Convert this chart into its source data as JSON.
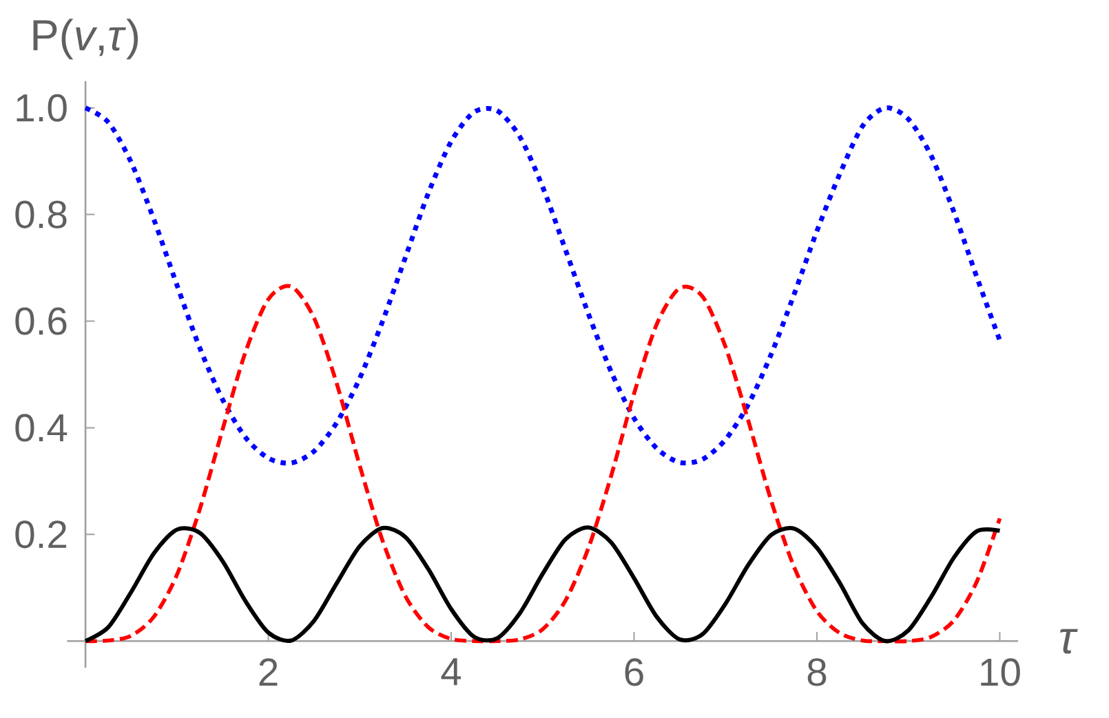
{
  "chart_data": {
    "type": "line",
    "ylabel": "P(*v*,*τ*)",
    "xlabel": "τ",
    "x": [
      0,
      0.25,
      0.5,
      0.75,
      1,
      1.25,
      1.5,
      1.75,
      2,
      2.25,
      2.5,
      2.75,
      3,
      3.25,
      3.5,
      3.75,
      4,
      4.25,
      4.5,
      4.75,
      5,
      5.25,
      5.5,
      5.75,
      6,
      6.25,
      6.5,
      6.75,
      7,
      7.25,
      7.5,
      7.75,
      8,
      8.25,
      8.5,
      8.75,
      9,
      9.25,
      9.5,
      9.75,
      10
    ],
    "series": [
      {
        "color": "#0000ff",
        "line_style": "dotted",
        "values": [
          1,
          0.973,
          0.898,
          0.79,
          0.668,
          0.55,
          0.453,
          0.382,
          0.343,
          0.334,
          0.356,
          0.41,
          0.493,
          0.6,
          0.72,
          0.84,
          0.937,
          0.992,
          0.995,
          0.946,
          0.852,
          0.734,
          0.614,
          0.505,
          0.418,
          0.361,
          0.335,
          0.341,
          0.378,
          0.444,
          0.538,
          0.65,
          0.769,
          0.876,
          0.966,
          1,
          0.979,
          0.91,
          0.804,
          0.682,
          0.564
        ]
      },
      {
        "color": "#ff0000",
        "line_style": "dashed",
        "values": [
          0,
          0.001,
          0.01,
          0.046,
          0.124,
          0.247,
          0.397,
          0.542,
          0.641,
          0.665,
          0.606,
          0.482,
          0.329,
          0.188,
          0.084,
          0.026,
          0.004,
          0,
          0,
          0.003,
          0.022,
          0.076,
          0.174,
          0.31,
          0.464,
          0.595,
          0.662,
          0.646,
          0.552,
          0.413,
          0.263,
          0.139,
          0.056,
          0.015,
          0.001,
          0,
          0,
          0.008,
          0.039,
          0.112,
          0.23
        ]
      },
      {
        "color": "#000000",
        "line_style": "solid",
        "values": [
          0,
          0.026,
          0.092,
          0.165,
          0.209,
          0.203,
          0.15,
          0.075,
          0.016,
          0.001,
          0.038,
          0.109,
          0.178,
          0.212,
          0.195,
          0.135,
          0.06,
          0.008,
          0.005,
          0.052,
          0.126,
          0.191,
          0.213,
          0.185,
          0.118,
          0.045,
          0.003,
          0.013,
          0.07,
          0.143,
          0.199,
          0.211,
          0.175,
          0.109,
          0.033,
          0,
          0.02,
          0.083,
          0.157,
          0.206,
          0.207
        ]
      }
    ],
    "xlim": [
      -0.2,
      10.2
    ],
    "ylim": [
      -0.05,
      1.05
    ],
    "xticks": [
      2,
      4,
      6,
      8,
      10
    ],
    "yticks": [
      0.2,
      0.4,
      0.6,
      0.8,
      {
        "value": 1,
        "label": "1.0"
      }
    ],
    "marker": "none"
  }
}
